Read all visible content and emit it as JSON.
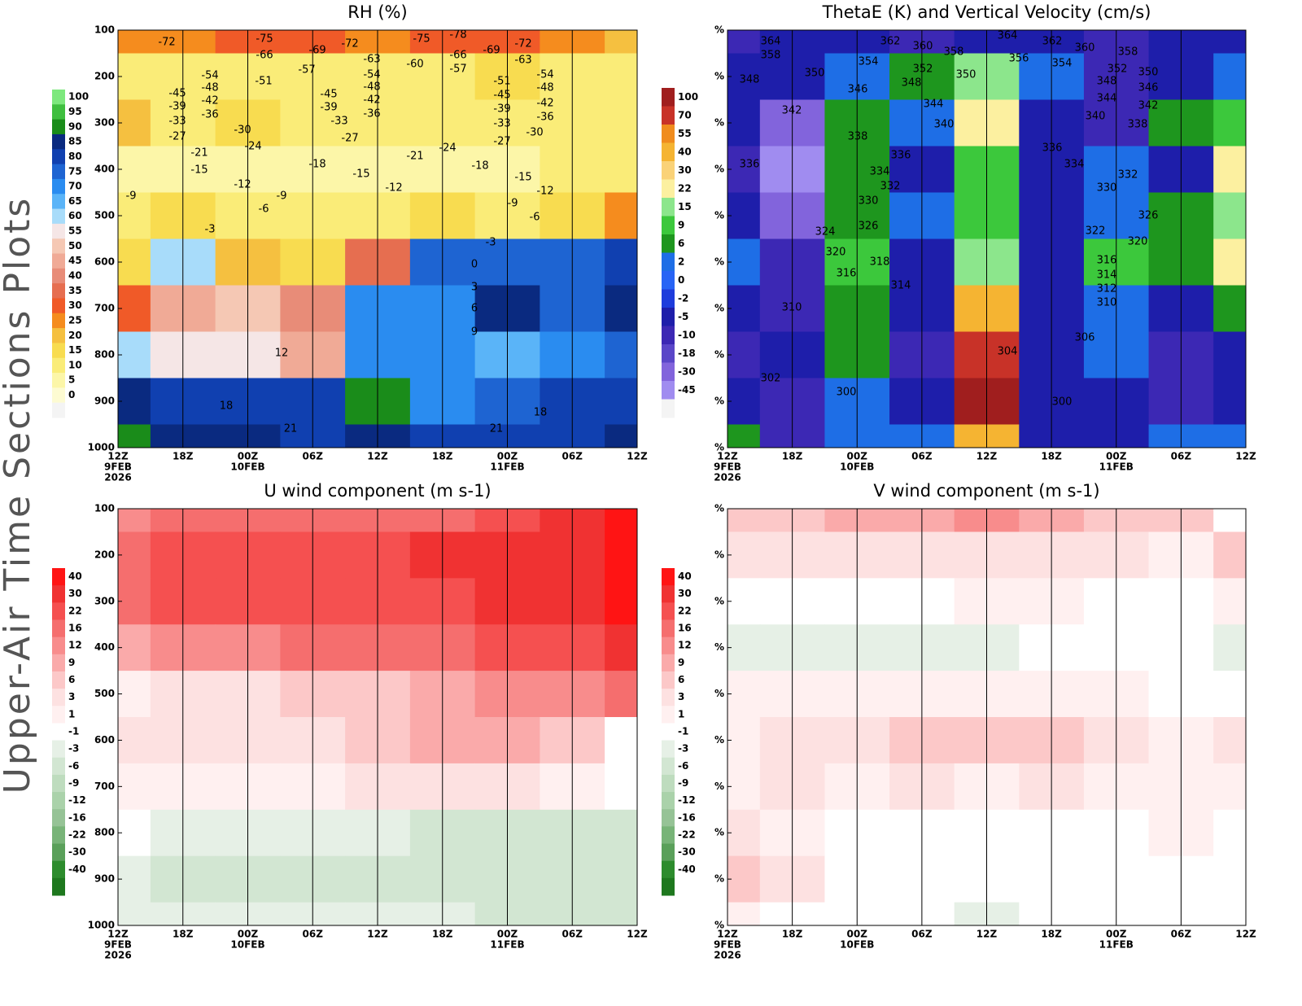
{
  "page": {
    "side_title": "Upper-Air Time Sections Plots"
  },
  "chart_data": [
    {
      "type": "contour",
      "title": "RH (%)",
      "categories": [
        "12Z",
        "18Z",
        "00Z",
        "06Z",
        "12Z",
        "18Z",
        "00Z",
        "06Z",
        "12Z"
      ],
      "xdates": [
        "9FEB",
        null,
        "10FEB",
        null,
        null,
        null,
        "11FEB",
        null,
        null
      ],
      "xyears": [
        "2026",
        null,
        null,
        null,
        null,
        null,
        null,
        null,
        null
      ],
      "y": [
        100,
        200,
        300,
        400,
        500,
        600,
        700,
        800,
        900,
        1000
      ],
      "ylim": [
        100,
        1000
      ],
      "yticks": [
        100,
        200,
        300,
        400,
        500,
        600,
        700,
        800,
        900,
        1000
      ],
      "grid": true,
      "values": [
        [
          28,
          25,
          30,
          30,
          28,
          30,
          30,
          25,
          22
        ],
        [
          14,
          13,
          12,
          13,
          13,
          14,
          15,
          14,
          12
        ],
        [
          20,
          12,
          18,
          10,
          10,
          10,
          10,
          10,
          10
        ],
        [
          8,
          8,
          8,
          6,
          8,
          8,
          8,
          10,
          10
        ],
        [
          12,
          15,
          12,
          12,
          14,
          16,
          14,
          18,
          28
        ],
        [
          18,
          60,
          22,
          18,
          35,
          75,
          78,
          78,
          82
        ],
        [
          30,
          48,
          52,
          40,
          70,
          72,
          88,
          78,
          85
        ],
        [
          62,
          55,
          58,
          45,
          72,
          70,
          68,
          72,
          78
        ],
        [
          86,
          82,
          82,
          82,
          92,
          72,
          78,
          80,
          84
        ],
        [
          90,
          85,
          85,
          84,
          85,
          84,
          84,
          84,
          85
        ]
      ],
      "colorbar": {
        "levels": [
          100,
          95,
          90,
          85,
          80,
          75,
          70,
          65,
          60,
          55,
          50,
          45,
          40,
          35,
          30,
          25,
          20,
          15,
          10,
          5,
          0
        ],
        "colors": [
          "#7de87d",
          "#3fbf3f",
          "#1a8c1a",
          "#0a2a80",
          "#1040b0",
          "#1e64d2",
          "#2a8cf0",
          "#5ab4f8",
          "#a8dcfa",
          "#f5e6e6",
          "#f5c8b4",
          "#f0aa96",
          "#e88c78",
          "#e66e50",
          "#f05a28",
          "#f58c1e",
          "#f5c040",
          "#f8dc50",
          "#faec78",
          "#fcf6a8",
          "#fdfbd2",
          "#f4f4f4"
        ]
      },
      "contour_labels": [
        -72,
        -75,
        -69,
        -72,
        -75,
        -78,
        -69,
        -72,
        -66,
        -63,
        -66,
        -63,
        -60,
        -57,
        -57,
        -54,
        -54,
        -54,
        -51,
        -51,
        -48,
        -48,
        -48,
        -45,
        -45,
        -45,
        -42,
        -42,
        -42,
        -39,
        -39,
        -39,
        -36,
        -36,
        -36,
        -33,
        -33,
        -33,
        -30,
        -30,
        -27,
        -27,
        -27,
        -24,
        -24,
        -21,
        -21,
        -18,
        -18,
        -15,
        -15,
        -15,
        -12,
        -12,
        -12,
        -9,
        -9,
        -9,
        -6,
        -6,
        -3,
        -3,
        0,
        3,
        6,
        9,
        12,
        18,
        18,
        21,
        21
      ]
    },
    {
      "type": "contour",
      "title": "ThetaE (K) and Vertical Velocity (cm/s)",
      "categories": [
        "12Z",
        "18Z",
        "00Z",
        "06Z",
        "12Z",
        "18Z",
        "00Z",
        "06Z",
        "12Z"
      ],
      "xdates": [
        "9FEB",
        null,
        "10FEB",
        null,
        null,
        null,
        "11FEB",
        null,
        null
      ],
      "xyears": [
        "2026",
        null,
        null,
        null,
        null,
        null,
        null,
        null,
        null
      ],
      "y": [
        100,
        200,
        300,
        400,
        500,
        600,
        700,
        800,
        900,
        1000
      ],
      "ylim": [
        100,
        1000
      ],
      "yticks": [
        {
          "value": 100,
          "label": "%"
        },
        {
          "value": 200,
          "label": "%"
        },
        {
          "value": 300,
          "label": "%"
        },
        {
          "value": 400,
          "label": "%"
        },
        {
          "value": 500,
          "label": "%"
        },
        {
          "value": 600,
          "label": "%"
        },
        {
          "value": 700,
          "label": "%"
        },
        {
          "value": 800,
          "label": "%"
        },
        {
          "value": 900,
          "label": "%"
        },
        {
          "value": 1000,
          "label": "%"
        }
      ],
      "grid": true,
      "values": [
        [
          -10,
          -5,
          -5,
          -10,
          -5,
          -5,
          -10,
          -5,
          -5
        ],
        [
          -5,
          -5,
          2,
          6,
          15,
          2,
          -10,
          -5,
          2
        ],
        [
          -5,
          -30,
          6,
          2,
          22,
          -5,
          -10,
          6,
          9
        ],
        [
          -10,
          -45,
          6,
          -5,
          9,
          -5,
          2,
          -5,
          22
        ],
        [
          -5,
          -30,
          6,
          2,
          9,
          -5,
          2,
          6,
          15
        ],
        [
          2,
          -10,
          9,
          -5,
          15,
          -5,
          9,
          6,
          22
        ],
        [
          -5,
          -10,
          6,
          -5,
          40,
          -5,
          2,
          -5,
          6
        ],
        [
          -10,
          -5,
          6,
          -10,
          70,
          -5,
          2,
          -10,
          -5
        ],
        [
          -5,
          -10,
          2,
          -5,
          100,
          -5,
          -5,
          -10,
          -5
        ],
        [
          6,
          -10,
          2,
          2,
          40,
          -5,
          -5,
          2,
          2
        ]
      ],
      "colorbar": {
        "levels": [
          100,
          70,
          55,
          40,
          30,
          22,
          15,
          9,
          6,
          2,
          0,
          -2,
          -5,
          -10,
          -18,
          -30,
          -45
        ],
        "colors": [
          "#a01e1e",
          "#c83228",
          "#f08c1e",
          "#f5b432",
          "#fad278",
          "#fcf0a0",
          "#8ce68c",
          "#3cc83c",
          "#1e961e",
          "#1e6ee6",
          "#2864f5",
          "#1e3cdc",
          "#1e1eaa",
          "#3c28b4",
          "#5a46c8",
          "#8264dc",
          "#a08cf0",
          "#f4f4f4"
        ]
      },
      "contour_labels": [
        364,
        358,
        348,
        342,
        336,
        362,
        360,
        358,
        354,
        352,
        346,
        348,
        350,
        350,
        344,
        340,
        338,
        336,
        334,
        332,
        330,
        326,
        324,
        320,
        318,
        316,
        314,
        310,
        364,
        362,
        360,
        356,
        354,
        358,
        352,
        350,
        348,
        346,
        344,
        342,
        340,
        338,
        336,
        334,
        332,
        330,
        326,
        322,
        320,
        316,
        314,
        312,
        310,
        306,
        304,
        302,
        300,
        300
      ]
    },
    {
      "type": "contour",
      "title": "U wind component (m s-1)",
      "categories": [
        "12Z",
        "18Z",
        "00Z",
        "06Z",
        "12Z",
        "18Z",
        "00Z",
        "06Z",
        "12Z"
      ],
      "xdates": [
        "9FEB",
        null,
        "10FEB",
        null,
        null,
        null,
        "11FEB",
        null,
        null
      ],
      "xyears": [
        "2026",
        null,
        null,
        null,
        null,
        null,
        null,
        null,
        null
      ],
      "y": [
        100,
        200,
        300,
        400,
        500,
        600,
        700,
        800,
        900,
        1000
      ],
      "ylim": [
        100,
        1000
      ],
      "yticks": [
        100,
        200,
        300,
        400,
        500,
        600,
        700,
        800,
        900,
        1000
      ],
      "grid": true,
      "values": [
        [
          12,
          16,
          16,
          16,
          16,
          16,
          22,
          30,
          40
        ],
        [
          16,
          22,
          22,
          22,
          22,
          30,
          30,
          30,
          40
        ],
        [
          16,
          22,
          22,
          22,
          22,
          22,
          30,
          30,
          40
        ],
        [
          9,
          12,
          12,
          16,
          16,
          16,
          22,
          22,
          30
        ],
        [
          1,
          3,
          3,
          6,
          6,
          9,
          12,
          12,
          16
        ],
        [
          3,
          3,
          3,
          3,
          6,
          9,
          9,
          6,
          -1
        ],
        [
          1,
          1,
          1,
          1,
          3,
          3,
          3,
          1,
          -1
        ],
        [
          -1,
          -3,
          -3,
          -3,
          -3,
          -6,
          -6,
          -6,
          -6
        ],
        [
          -3,
          -6,
          -6,
          -6,
          -6,
          -6,
          -6,
          -6,
          -6
        ],
        [
          -3,
          -3,
          -3,
          -3,
          -3,
          -3,
          -6,
          -6,
          -6
        ]
      ],
      "colorbar": {
        "levels": [
          40,
          30,
          22,
          16,
          12,
          9,
          6,
          3,
          1,
          -1,
          -3,
          -6,
          -9,
          -12,
          -16,
          -22,
          -30,
          -40
        ],
        "colors": [
          "#ff1414",
          "#f03232",
          "#f55050",
          "#f56e6e",
          "#f88c8c",
          "#faaaaa",
          "#fcc8c8",
          "#fde1e1",
          "#fff0f0",
          "#ffffff",
          "#e6f0e6",
          "#d2e6d2",
          "#bedcbe",
          "#aad2aa",
          "#96c396",
          "#78b478",
          "#5aa05a",
          "#2d8c2d",
          "#1e781e"
        ]
      }
    },
    {
      "type": "contour",
      "title": "V wind component (m s-1)",
      "categories": [
        "12Z",
        "18Z",
        "00Z",
        "06Z",
        "12Z",
        "18Z",
        "00Z",
        "06Z",
        "12Z"
      ],
      "xdates": [
        "9FEB",
        null,
        "10FEB",
        null,
        null,
        null,
        "11FEB",
        null,
        null
      ],
      "xyears": [
        "2026",
        null,
        null,
        null,
        null,
        null,
        null,
        null,
        null
      ],
      "y": [
        100,
        200,
        300,
        400,
        500,
        600,
        700,
        800,
        900,
        1000
      ],
      "ylim": [
        100,
        1000
      ],
      "yticks": [
        {
          "value": 100,
          "label": "%"
        },
        {
          "value": 200,
          "label": "%"
        },
        {
          "value": 300,
          "label": "%"
        },
        {
          "value": 400,
          "label": "%"
        },
        {
          "value": 500,
          "label": "%"
        },
        {
          "value": 600,
          "label": "%"
        },
        {
          "value": 700,
          "label": "%"
        },
        {
          "value": 800,
          "label": "%"
        },
        {
          "value": 900,
          "label": "%"
        },
        {
          "value": 1000,
          "label": "%"
        }
      ],
      "grid": true,
      "values": [
        [
          6,
          6,
          9,
          9,
          12,
          9,
          6,
          6,
          -1
        ],
        [
          3,
          3,
          3,
          3,
          3,
          3,
          3,
          1,
          6
        ],
        [
          -1,
          -1,
          -1,
          -1,
          1,
          1,
          -1,
          -1,
          1
        ],
        [
          -3,
          -3,
          -3,
          -3,
          -3,
          -1,
          -1,
          -1,
          -3
        ],
        [
          1,
          1,
          1,
          1,
          1,
          1,
          1,
          -1,
          -1
        ],
        [
          1,
          3,
          3,
          6,
          6,
          6,
          3,
          1,
          3
        ],
        [
          1,
          3,
          1,
          3,
          1,
          3,
          1,
          1,
          1
        ],
        [
          3,
          1,
          -1,
          -1,
          -1,
          -1,
          -1,
          1,
          -1
        ],
        [
          6,
          3,
          -1,
          -1,
          -1,
          -1,
          -1,
          -1,
          -1
        ],
        [
          1,
          -1,
          -1,
          -1,
          -3,
          -1,
          -1,
          -1,
          -1
        ]
      ],
      "colorbar": {
        "levels": [
          40,
          30,
          22,
          16,
          12,
          9,
          6,
          3,
          1,
          -1,
          -3,
          -6,
          -9,
          -12,
          -16,
          -22,
          -30,
          -40
        ],
        "colors": [
          "#ff1414",
          "#f03232",
          "#f55050",
          "#f56e6e",
          "#f88c8c",
          "#faaaaa",
          "#fcc8c8",
          "#fde1e1",
          "#fff0f0",
          "#ffffff",
          "#e6f0e6",
          "#d2e6d2",
          "#bedcbe",
          "#aad2aa",
          "#96c396",
          "#78b478",
          "#5aa05a",
          "#2d8c2d",
          "#1e781e"
        ]
      }
    }
  ]
}
